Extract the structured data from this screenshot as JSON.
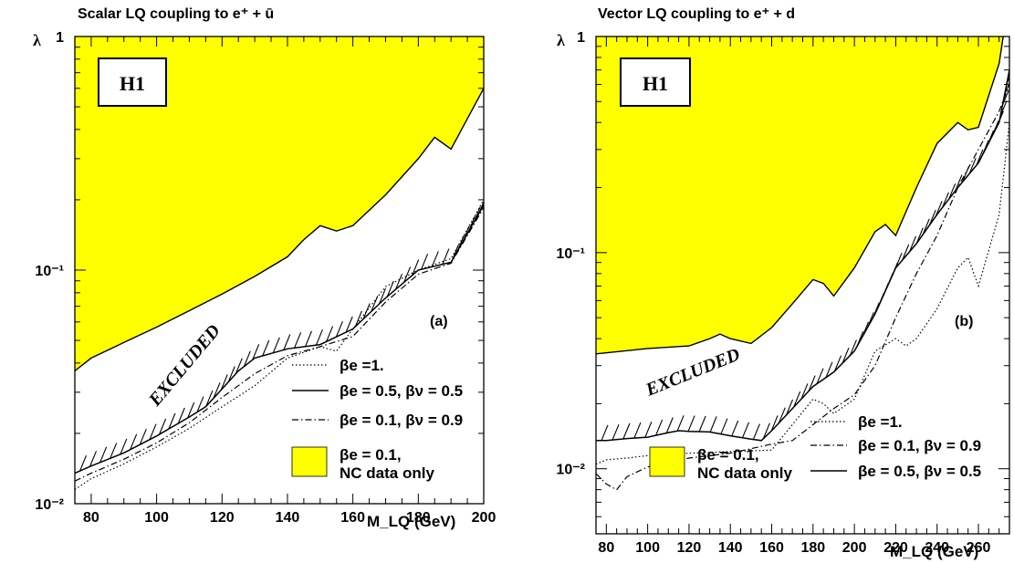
{
  "chart_data": [
    {
      "type": "line",
      "panel": "(a)",
      "title": "Scalar LQ coupling to e⁺ + ū",
      "badge": "H1",
      "xlabel": "M_LQ (GeV)",
      "ylabel": "λ",
      "yscale": "log",
      "xlim": [
        75,
        200
      ],
      "ylim": [
        0.01,
        1
      ],
      "x_ticks": [
        80,
        100,
        120,
        140,
        160,
        180,
        200
      ],
      "y_tick_labels": [
        "10⁻²",
        "10⁻¹",
        "1"
      ],
      "excluded_label": "EXCLUDED",
      "series": [
        {
          "name": "βe = 0.1, NC data only",
          "style": "filled",
          "color": "#ffff00",
          "x": [
            75,
            80,
            90,
            100,
            110,
            120,
            130,
            140,
            145,
            150,
            155,
            160,
            170,
            180,
            185,
            190,
            200
          ],
          "y": [
            0.037,
            0.042,
            0.049,
            0.057,
            0.067,
            0.079,
            0.094,
            0.114,
            0.135,
            0.155,
            0.147,
            0.155,
            0.21,
            0.3,
            0.37,
            0.33,
            0.6
          ]
        },
        {
          "name": "βe =1.",
          "style": "dotted",
          "x": [
            75,
            80,
            90,
            100,
            110,
            120,
            130,
            140,
            150,
            155,
            160,
            170,
            180,
            190,
            200
          ],
          "y": [
            0.0115,
            0.0128,
            0.0148,
            0.0175,
            0.021,
            0.026,
            0.032,
            0.042,
            0.047,
            0.045,
            0.056,
            0.085,
            0.1,
            0.112,
            0.2
          ]
        },
        {
          "name": "βe = 0.5, βν = 0.5",
          "style": "solid",
          "x": [
            75,
            80,
            90,
            100,
            110,
            115,
            120,
            125,
            130,
            140,
            150,
            160,
            170,
            180,
            190,
            200
          ],
          "y": [
            0.0135,
            0.0145,
            0.0165,
            0.0195,
            0.0235,
            0.026,
            0.031,
            0.037,
            0.042,
            0.046,
            0.048,
            0.056,
            0.076,
            0.1,
            0.108,
            0.19
          ]
        },
        {
          "name": "βe = 0.1, βν = 0.9",
          "style": "dashdot",
          "x": [
            75,
            80,
            90,
            100,
            110,
            120,
            130,
            140,
            150,
            160,
            170,
            180,
            190,
            200
          ],
          "y": [
            0.0125,
            0.0135,
            0.0155,
            0.0182,
            0.0222,
            0.0285,
            0.036,
            0.043,
            0.047,
            0.052,
            0.073,
            0.096,
            0.107,
            0.185
          ]
        }
      ]
    },
    {
      "type": "line",
      "panel": "(b)",
      "title": "Vector LQ coupling to e⁺ + d",
      "badge": "H1",
      "xlabel": "M_LQ (GeV)",
      "ylabel": "λ",
      "yscale": "log",
      "xlim": [
        75,
        275
      ],
      "ylim": [
        0.005,
        1
      ],
      "x_ticks": [
        80,
        100,
        120,
        140,
        160,
        180,
        200,
        220,
        240,
        260
      ],
      "y_tick_labels": [
        "10⁻²",
        "10⁻¹",
        "1"
      ],
      "excluded_label": "EXCLUDED",
      "series": [
        {
          "name": "βe = 0.1, NC data only",
          "style": "filled",
          "color": "#ffff00",
          "x": [
            75,
            100,
            120,
            130,
            135,
            140,
            150,
            160,
            170,
            180,
            185,
            190,
            200,
            210,
            215,
            220,
            230,
            240,
            250,
            255,
            260,
            270,
            272
          ],
          "y": [
            0.034,
            0.036,
            0.037,
            0.04,
            0.042,
            0.04,
            0.038,
            0.045,
            0.058,
            0.075,
            0.072,
            0.063,
            0.085,
            0.125,
            0.135,
            0.12,
            0.2,
            0.32,
            0.4,
            0.37,
            0.38,
            0.75,
            1.0
          ]
        },
        {
          "name": "βe =1.",
          "style": "dotted",
          "x": [
            75,
            80,
            90,
            100,
            120,
            140,
            160,
            170,
            180,
            185,
            190,
            200,
            210,
            220,
            225,
            230,
            240,
            250,
            255,
            260,
            270,
            275
          ],
          "y": [
            0.0105,
            0.011,
            0.0112,
            0.0115,
            0.0118,
            0.012,
            0.0122,
            0.016,
            0.021,
            0.02,
            0.018,
            0.021,
            0.035,
            0.04,
            0.037,
            0.04,
            0.055,
            0.085,
            0.095,
            0.07,
            0.15,
            0.4
          ]
        },
        {
          "name": "βe = 0.1, βν = 0.9",
          "style": "dashdot",
          "x": [
            75,
            80,
            85,
            90,
            100,
            110,
            120,
            140,
            160,
            170,
            180,
            190,
            200,
            210,
            220,
            230,
            240,
            250,
            260,
            270,
            275
          ],
          "y": [
            0.0095,
            0.0085,
            0.008,
            0.0092,
            0.0102,
            0.0107,
            0.0112,
            0.0118,
            0.013,
            0.0135,
            0.016,
            0.019,
            0.022,
            0.03,
            0.05,
            0.08,
            0.12,
            0.2,
            0.3,
            0.45,
            0.6
          ]
        },
        {
          "name": "βe = 0.5, βν = 0.5",
          "style": "solid",
          "x": [
            75,
            80,
            90,
            100,
            110,
            115,
            120,
            130,
            140,
            150,
            155,
            160,
            170,
            180,
            190,
            200,
            210,
            220,
            230,
            240,
            250,
            260,
            270,
            275
          ],
          "y": [
            0.0135,
            0.0135,
            0.0138,
            0.014,
            0.0147,
            0.015,
            0.0149,
            0.0148,
            0.0142,
            0.0137,
            0.0135,
            0.015,
            0.019,
            0.024,
            0.028,
            0.035,
            0.052,
            0.085,
            0.11,
            0.15,
            0.2,
            0.26,
            0.4,
            0.7
          ]
        }
      ]
    }
  ]
}
